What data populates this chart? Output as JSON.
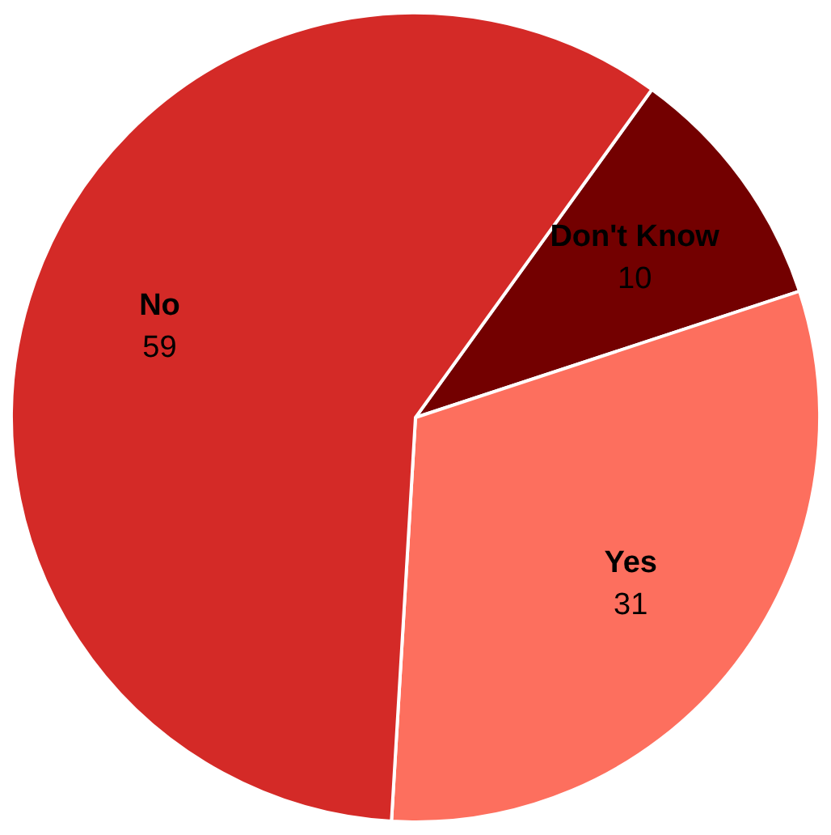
{
  "chart_data": {
    "type": "pie",
    "categories": [
      "Don't Know",
      "Yes",
      "No"
    ],
    "values": [
      10,
      31,
      59
    ],
    "colors": [
      "#730000",
      "#fd6f5e",
      "#d42a27"
    ],
    "data_labels": true
  }
}
